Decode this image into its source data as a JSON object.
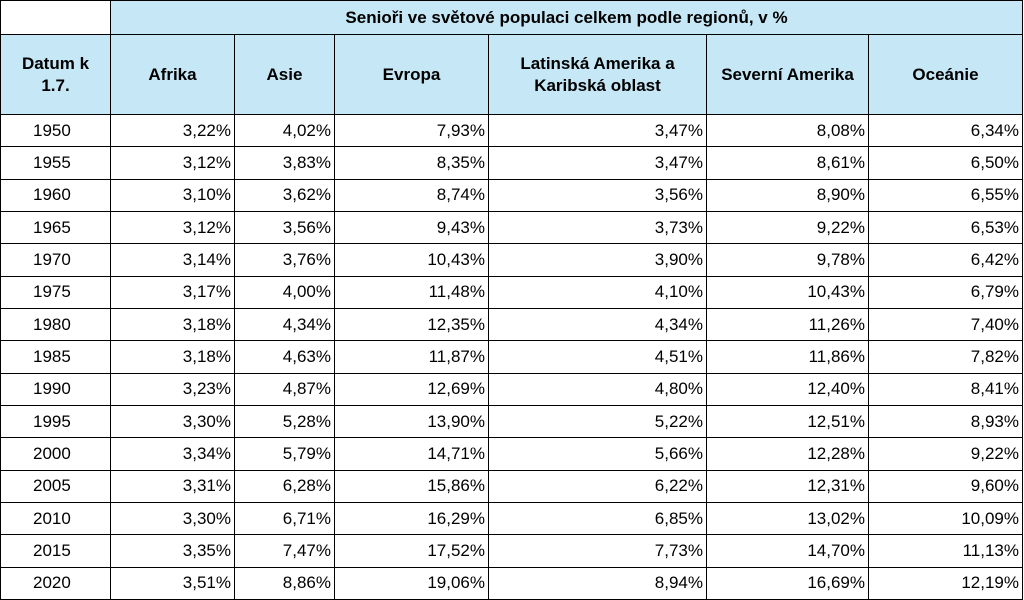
{
  "table": {
    "title": "Senioři ve světové populaci celkem podle regionů, v %",
    "date_header": "Datum k 1.7.",
    "columns": [
      "Afrika",
      "Asie",
      "Evropa",
      "Latinská Amerika a Karibská oblast",
      "Severní Amerika",
      "Oceánie"
    ],
    "rows": [
      {
        "year": "1950",
        "values": [
          "3,22%",
          "4,02%",
          "7,93%",
          "3,47%",
          "8,08%",
          "6,34%"
        ]
      },
      {
        "year": "1955",
        "values": [
          "3,12%",
          "3,83%",
          "8,35%",
          "3,47%",
          "8,61%",
          "6,50%"
        ]
      },
      {
        "year": "1960",
        "values": [
          "3,10%",
          "3,62%",
          "8,74%",
          "3,56%",
          "8,90%",
          "6,55%"
        ]
      },
      {
        "year": "1965",
        "values": [
          "3,12%",
          "3,56%",
          "9,43%",
          "3,73%",
          "9,22%",
          "6,53%"
        ]
      },
      {
        "year": "1970",
        "values": [
          "3,14%",
          "3,76%",
          "10,43%",
          "3,90%",
          "9,78%",
          "6,42%"
        ]
      },
      {
        "year": "1975",
        "values": [
          "3,17%",
          "4,00%",
          "11,48%",
          "4,10%",
          "10,43%",
          "6,79%"
        ]
      },
      {
        "year": "1980",
        "values": [
          "3,18%",
          "4,34%",
          "12,35%",
          "4,34%",
          "11,26%",
          "7,40%"
        ]
      },
      {
        "year": "1985",
        "values": [
          "3,18%",
          "4,63%",
          "11,87%",
          "4,51%",
          "11,86%",
          "7,82%"
        ]
      },
      {
        "year": "1990",
        "values": [
          "3,23%",
          "4,87%",
          "12,69%",
          "4,80%",
          "12,40%",
          "8,41%"
        ]
      },
      {
        "year": "1995",
        "values": [
          "3,30%",
          "5,28%",
          "13,90%",
          "5,22%",
          "12,51%",
          "8,93%"
        ]
      },
      {
        "year": "2000",
        "values": [
          "3,34%",
          "5,79%",
          "14,71%",
          "5,66%",
          "12,28%",
          "9,22%"
        ]
      },
      {
        "year": "2005",
        "values": [
          "3,31%",
          "6,28%",
          "15,86%",
          "6,22%",
          "12,31%",
          "9,60%"
        ]
      },
      {
        "year": "2010",
        "values": [
          "3,30%",
          "6,71%",
          "16,29%",
          "6,85%",
          "13,02%",
          "10,09%"
        ]
      },
      {
        "year": "2015",
        "values": [
          "3,35%",
          "7,47%",
          "17,52%",
          "7,73%",
          "14,70%",
          "11,13%"
        ]
      },
      {
        "year": "2020",
        "values": [
          "3,51%",
          "8,86%",
          "19,06%",
          "8,94%",
          "16,69%",
          "12,19%"
        ]
      }
    ]
  },
  "colors": {
    "header_background": "#c6e7f5",
    "border": "#000000",
    "background": "#ffffff"
  }
}
